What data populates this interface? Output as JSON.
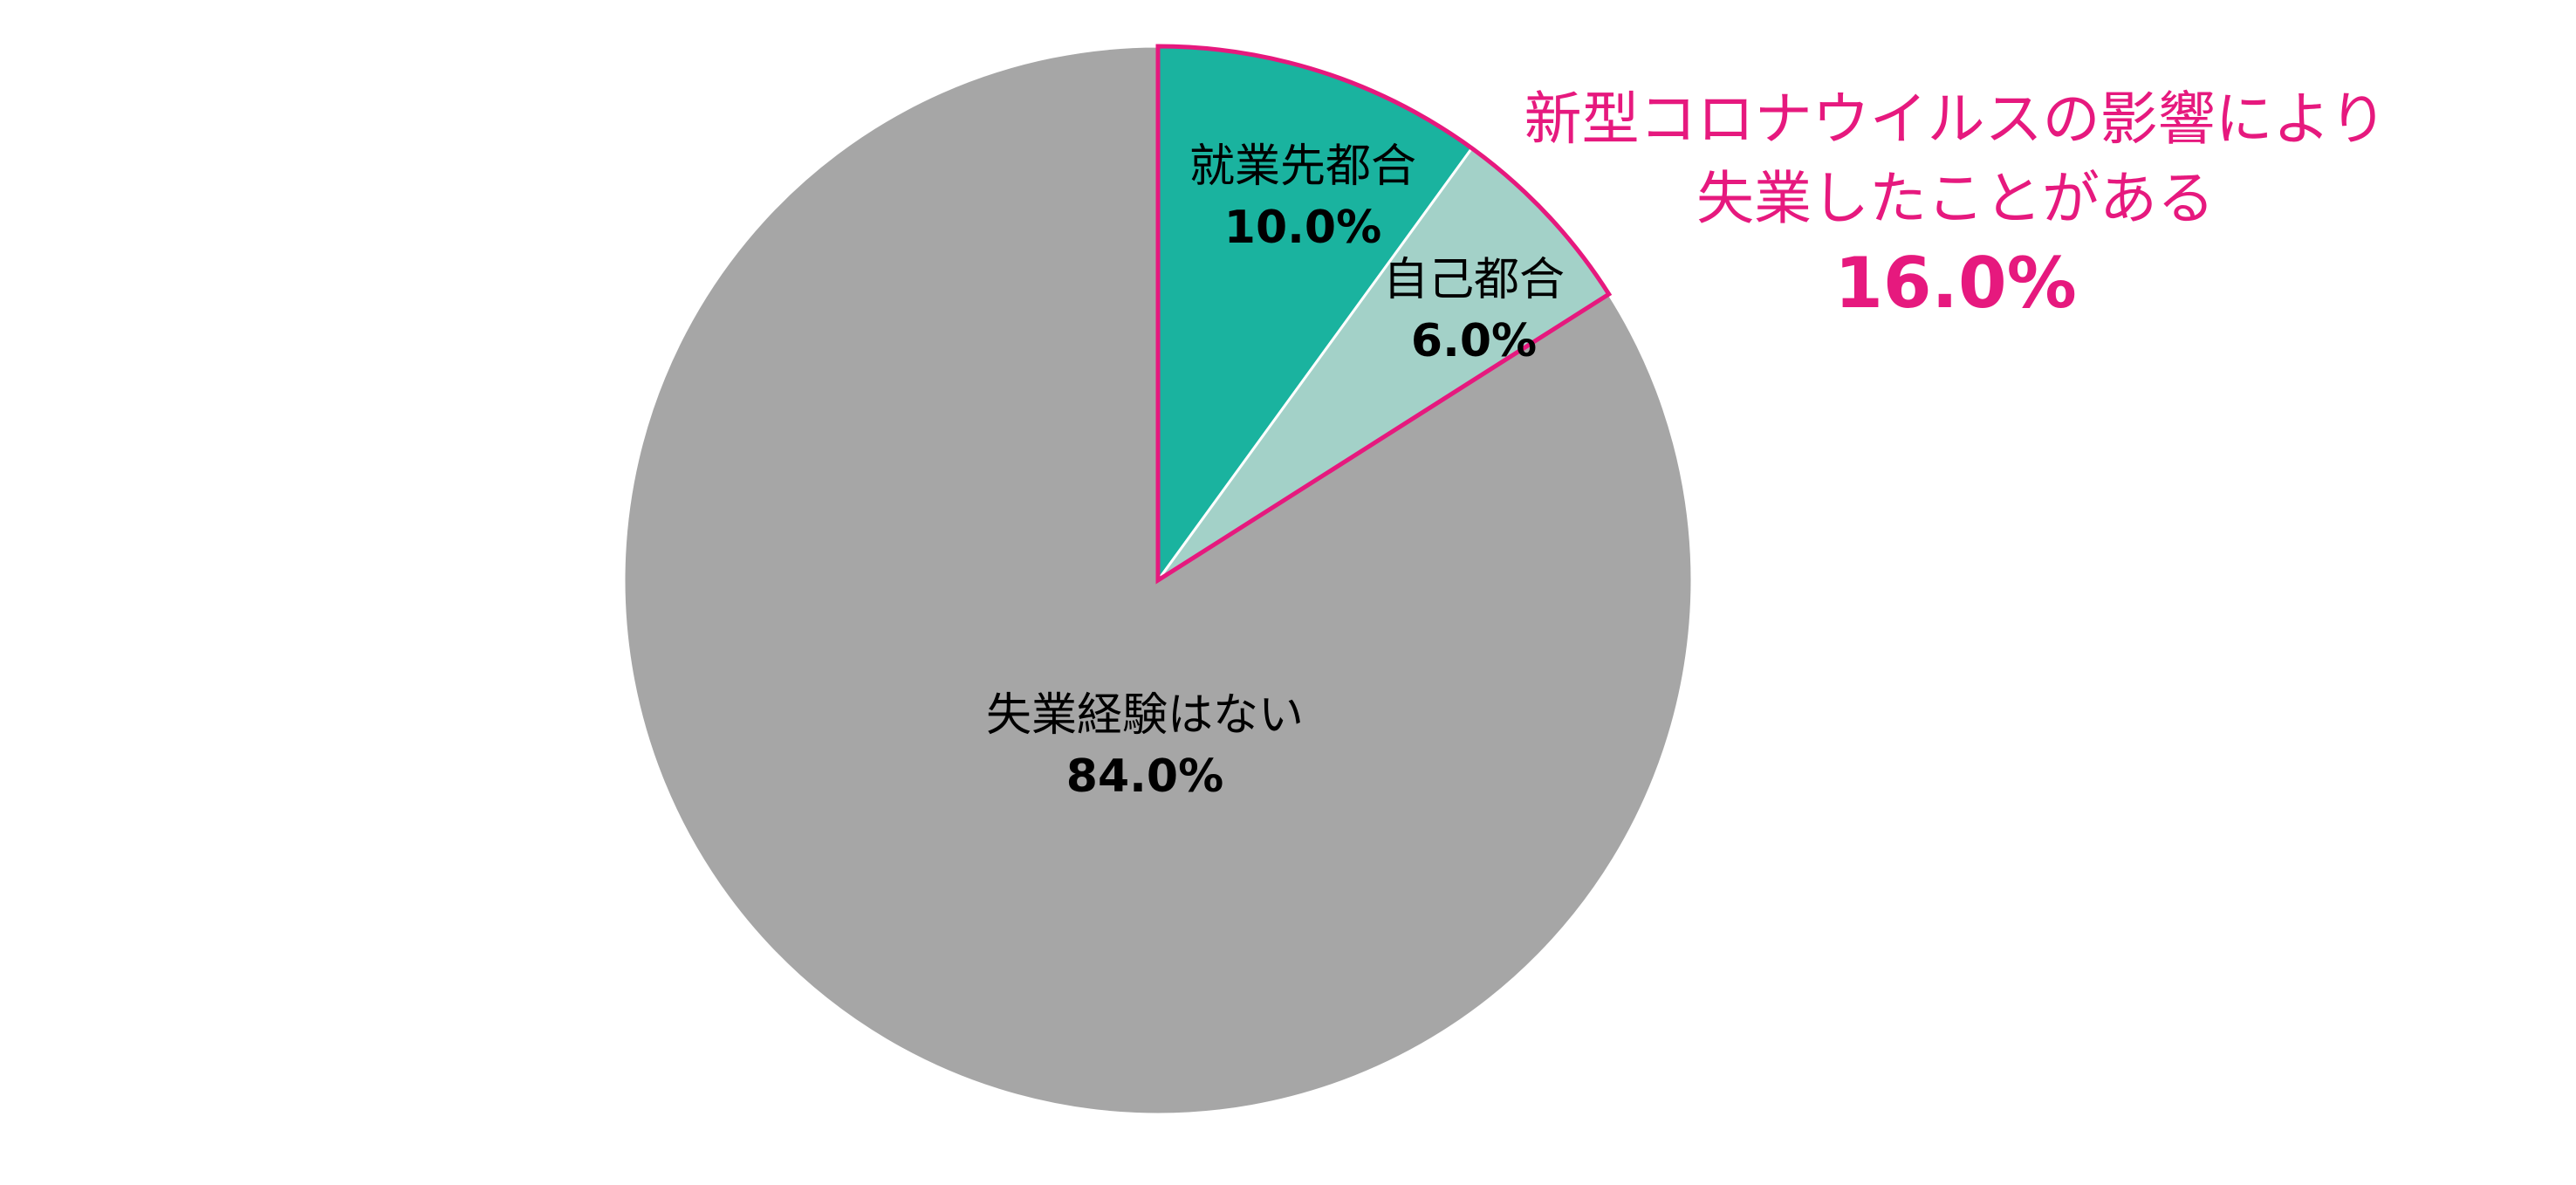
{
  "chart_data": {
    "type": "pie",
    "categories": [
      "就業先都合",
      "自己都合",
      "失業経験はない"
    ],
    "values": [
      10,
      6,
      84
    ],
    "value_labels": [
      "10.0%",
      "6.0%",
      "84.0%"
    ],
    "colors": [
      "#1ab39f",
      "#a3d1c8",
      "#a6a6a6"
    ],
    "annotation": {
      "lines": [
        "新型コロナウイルスの影響により",
        "失業したことがある"
      ],
      "value": 16,
      "value_label": "16.0%",
      "color": "#e6197e"
    }
  }
}
